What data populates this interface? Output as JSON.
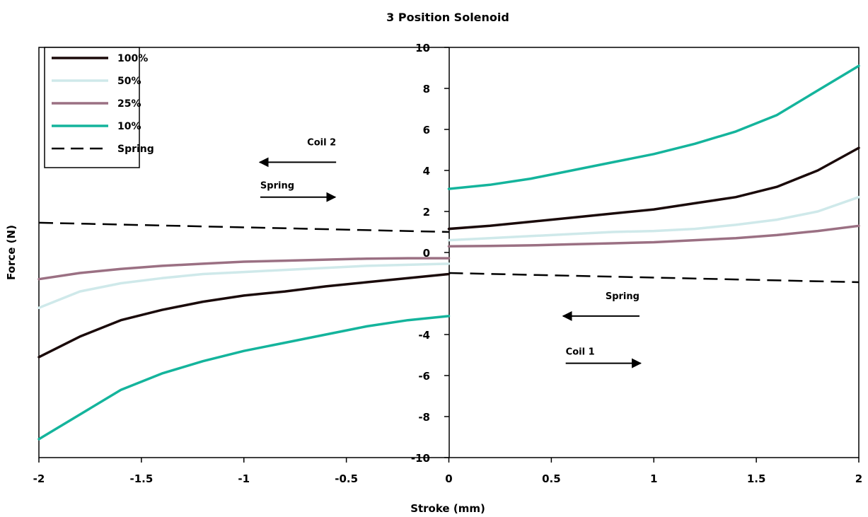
{
  "chart_data": {
    "type": "line",
    "title": "3 Position Solenoid",
    "xlabel": "Stroke (mm)",
    "ylabel": "Force (N)",
    "xlim": [
      -2,
      2
    ],
    "ylim": [
      -10,
      10
    ],
    "x_ticks": [
      "-2",
      "-1.5",
      "-1",
      "-0.5",
      "0",
      "0.5",
      "1",
      "1.5",
      "2"
    ],
    "y_ticks": [
      "10",
      "8",
      "6",
      "4",
      "2",
      "0",
      "-4",
      "-6",
      "-8",
      "-10"
    ],
    "grid": false,
    "legend_position": "top-left",
    "series": [
      {
        "name": "100%",
        "color": "#1a0a0a",
        "dash": "solid",
        "segments": [
          [
            [
              -2,
              -5.1
            ],
            [
              -1.8,
              -4.1
            ],
            [
              -1.6,
              -3.3
            ],
            [
              -1.4,
              -2.8
            ],
            [
              -1.2,
              -2.4
            ],
            [
              -1,
              -2.1
            ],
            [
              -0.8,
              -1.9
            ],
            [
              -0.6,
              -1.65
            ],
            [
              -0.4,
              -1.45
            ],
            [
              -0.2,
              -1.25
            ],
            [
              0,
              -1.05
            ]
          ],
          [
            [
              0,
              1.15
            ],
            [
              0.2,
              1.3
            ],
            [
              0.4,
              1.5
            ],
            [
              0.6,
              1.7
            ],
            [
              0.8,
              1.9
            ],
            [
              1,
              2.1
            ],
            [
              1.2,
              2.4
            ],
            [
              1.4,
              2.7
            ],
            [
              1.6,
              3.2
            ],
            [
              1.8,
              4.0
            ],
            [
              2,
              5.1
            ]
          ]
        ]
      },
      {
        "name": "50%",
        "color": "#cfe9ea",
        "dash": "solid",
        "segments": [
          [
            [
              -2,
              -2.7
            ],
            [
              -1.8,
              -1.9
            ],
            [
              -1.6,
              -1.5
            ],
            [
              -1.4,
              -1.25
            ],
            [
              -1.2,
              -1.05
            ],
            [
              -1,
              -0.95
            ],
            [
              -0.8,
              -0.85
            ],
            [
              -0.6,
              -0.75
            ],
            [
              -0.4,
              -0.65
            ],
            [
              -0.2,
              -0.6
            ],
            [
              0,
              -0.55
            ]
          ],
          [
            [
              0,
              0.6
            ],
            [
              0.2,
              0.7
            ],
            [
              0.4,
              0.8
            ],
            [
              0.6,
              0.9
            ],
            [
              0.8,
              1.0
            ],
            [
              1,
              1.05
            ],
            [
              1.2,
              1.15
            ],
            [
              1.4,
              1.35
            ],
            [
              1.6,
              1.6
            ],
            [
              1.8,
              2.0
            ],
            [
              2,
              2.7
            ]
          ]
        ]
      },
      {
        "name": "25%",
        "color": "#9b7083",
        "dash": "solid",
        "segments": [
          [
            [
              -2,
              -1.3
            ],
            [
              -1.8,
              -1.0
            ],
            [
              -1.6,
              -0.8
            ],
            [
              -1.4,
              -0.65
            ],
            [
              -1.2,
              -0.55
            ],
            [
              -1,
              -0.45
            ],
            [
              -0.8,
              -0.4
            ],
            [
              -0.6,
              -0.35
            ],
            [
              -0.4,
              -0.3
            ],
            [
              -0.2,
              -0.28
            ],
            [
              0,
              -0.28
            ]
          ],
          [
            [
              0,
              0.3
            ],
            [
              0.2,
              0.32
            ],
            [
              0.4,
              0.35
            ],
            [
              0.6,
              0.4
            ],
            [
              0.8,
              0.45
            ],
            [
              1,
              0.5
            ],
            [
              1.2,
              0.6
            ],
            [
              1.4,
              0.7
            ],
            [
              1.6,
              0.85
            ],
            [
              1.8,
              1.05
            ],
            [
              2,
              1.3
            ]
          ]
        ]
      },
      {
        "name": "10%",
        "color": "#14b49c",
        "dash": "solid",
        "segments": [
          [
            [
              -2,
              -9.1
            ],
            [
              -1.8,
              -7.9
            ],
            [
              -1.6,
              -6.7
            ],
            [
              -1.4,
              -5.9
            ],
            [
              -1.2,
              -5.3
            ],
            [
              -1,
              -4.8
            ],
            [
              -0.8,
              -4.4
            ],
            [
              -0.6,
              -4.0
            ],
            [
              -0.4,
              -3.6
            ],
            [
              -0.2,
              -3.3
            ],
            [
              0,
              -3.1
            ]
          ],
          [
            [
              0,
              3.1
            ],
            [
              0.2,
              3.3
            ],
            [
              0.4,
              3.6
            ],
            [
              0.6,
              4.0
            ],
            [
              0.8,
              4.4
            ],
            [
              1,
              4.8
            ],
            [
              1.2,
              5.3
            ],
            [
              1.4,
              5.9
            ],
            [
              1.6,
              6.7
            ],
            [
              1.8,
              7.9
            ],
            [
              2,
              9.1
            ]
          ]
        ]
      },
      {
        "name": "Spring",
        "color": "#000000",
        "dash": "dashed",
        "segments": [
          [
            [
              -2,
              1.45
            ],
            [
              0,
              1.0
            ]
          ],
          [
            [
              0,
              -1.0
            ],
            [
              2,
              -1.45
            ]
          ]
        ]
      }
    ],
    "annotations": [
      {
        "text": "Coil 2",
        "arrow": "left",
        "x": -0.55,
        "y": 4.4
      },
      {
        "text": "Spring",
        "arrow": "right",
        "x": -0.92,
        "y": 2.7
      },
      {
        "text": "Spring",
        "arrow": "left",
        "x": 0.93,
        "y": -3.1
      },
      {
        "text": "Coil 1",
        "arrow": "right",
        "x": 0.57,
        "y": -5.4
      }
    ]
  }
}
